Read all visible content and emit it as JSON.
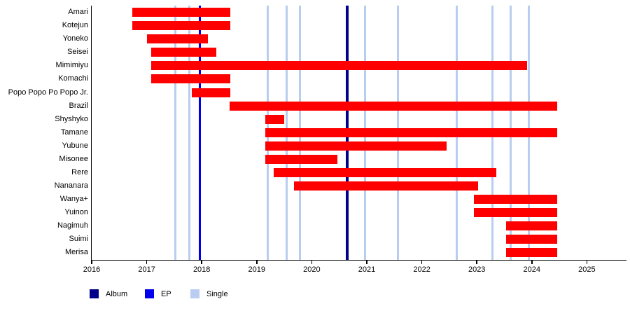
{
  "chart_data": {
    "type": "bar",
    "subtype": "gantt-member-timeline",
    "title": "",
    "xlabel": "",
    "ylabel": "",
    "grid": false,
    "x_axis": {
      "min": 2016,
      "max": 2025.72,
      "ticks": [
        2016,
        2017,
        2018,
        2019,
        2020,
        2021,
        2022,
        2023,
        2024,
        2025
      ]
    },
    "members": [
      {
        "name": "Amari",
        "start": 2016.74,
        "end": 2018.52
      },
      {
        "name": "Kotejun",
        "start": 2016.74,
        "end": 2018.52
      },
      {
        "name": "Yoneko",
        "start": 2017.0,
        "end": 2018.11
      },
      {
        "name": "Seisei",
        "start": 2017.08,
        "end": 2018.26
      },
      {
        "name": "Mimimiyu",
        "start": 2017.08,
        "end": 2023.91
      },
      {
        "name": "Komachi",
        "start": 2017.08,
        "end": 2018.52
      },
      {
        "name": "Popo Popo Po Popo Jr.",
        "start": 2017.82,
        "end": 2018.52
      },
      {
        "name": "Brazil",
        "start": 2018.5,
        "end": 2024.46
      },
      {
        "name": "Shyshyko",
        "start": 2019.16,
        "end": 2019.5
      },
      {
        "name": "Tamane",
        "start": 2019.15,
        "end": 2024.46
      },
      {
        "name": "Yubune",
        "start": 2019.15,
        "end": 2022.45
      },
      {
        "name": "Misonee",
        "start": 2019.15,
        "end": 2020.46
      },
      {
        "name": "Rere",
        "start": 2019.31,
        "end": 2023.35
      },
      {
        "name": "Nananara",
        "start": 2019.68,
        "end": 2023.02
      },
      {
        "name": "Wanya+",
        "start": 2022.95,
        "end": 2024.46
      },
      {
        "name": "Yuinon",
        "start": 2022.95,
        "end": 2024.46
      },
      {
        "name": "Nagimuh",
        "start": 2023.53,
        "end": 2024.46
      },
      {
        "name": "Suimi",
        "start": 2023.53,
        "end": 2024.46
      },
      {
        "name": "Merisa",
        "start": 2023.53,
        "end": 2024.46
      }
    ],
    "releases": {
      "album": [
        2020.65
      ],
      "ep": [
        2017.96
      ],
      "single": [
        2017.52,
        2017.77,
        2019.2,
        2019.54,
        2019.78,
        2020.97,
        2021.56,
        2022.63,
        2023.28,
        2023.62,
        2023.94
      ]
    },
    "legend": [
      {
        "key": "album",
        "label": "Album",
        "color": "#00008b"
      },
      {
        "key": "ep",
        "label": "EP",
        "color": "#0000ee"
      },
      {
        "key": "single",
        "label": "Single",
        "color": "#b9cdf1"
      }
    ],
    "legend_position": "bottom-left",
    "colors": {
      "bar": "#fe0000",
      "axis": "#000000"
    }
  }
}
